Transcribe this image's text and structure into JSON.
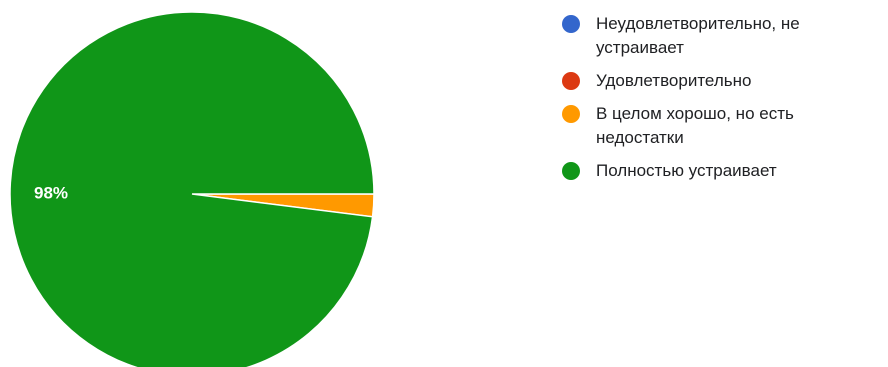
{
  "chart_data": {
    "type": "pie",
    "slices": [
      {
        "label": "Неудовлетворительно, не устраивает",
        "value": 0,
        "color": "#3366cc"
      },
      {
        "label": "Удовлетворительно",
        "value": 0,
        "color": "#dc3912"
      },
      {
        "label": "В целом хорошо, но есть недостатки",
        "value": 2,
        "color": "#ff9900"
      },
      {
        "label": "Полностью устраивает",
        "value": 98,
        "color": "#109618"
      }
    ],
    "data_labels": [
      "98%"
    ],
    "legend_position": "right"
  }
}
